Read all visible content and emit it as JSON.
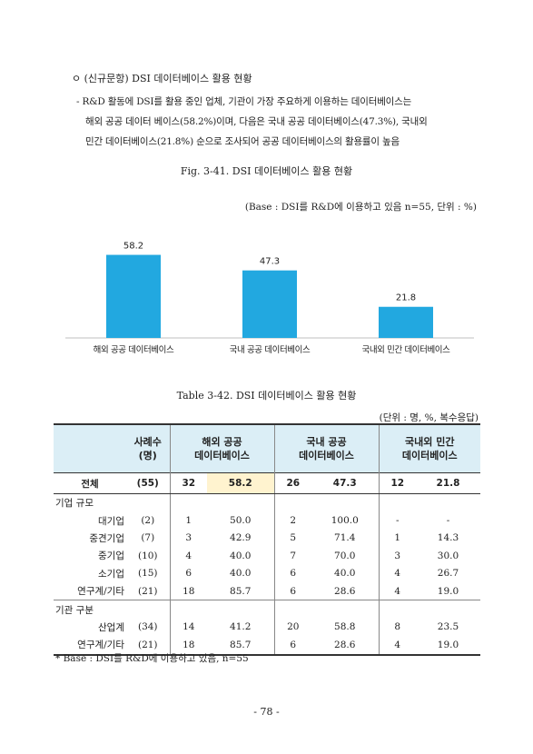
{
  "section": {
    "heading": "ㅇ (신규문항) DSI 데이터베이스 활용 현황",
    "summary_lines": [
      "- R&D 활동에 DSI를 활용 중인 업체, 기관이 가장 주요하게 이용하는 데이터베이스는",
      "해외 공공 데이터 베이스(58.2%)이며, 다음은 국내 공공 데이터베이스(47.3%), 국내외",
      "민간 데이터베이스(21.8%) 순으로 조사되어 공공 데이터베이스의 활용률이 높음"
    ]
  },
  "figure": {
    "caption": "Fig. 3-41. DSI 데이터베이스 활용 현황",
    "base_note": "(Base : DSI를 R&D에 이용하고 있음 n=55, 단위 : %)"
  },
  "chart_data": {
    "type": "bar",
    "categories": [
      "해외 공공 데이터베이스",
      "국내 공공 데이터베이스",
      "국내외 민간 데이터베이스"
    ],
    "values": [
      58.2,
      47.3,
      21.8
    ],
    "value_labels": [
      "58.2",
      "47.3",
      "21.8"
    ],
    "bar_color": "#22a8e0",
    "ylim": [
      0,
      70
    ],
    "grid": false,
    "legend": "none",
    "title": "",
    "xlabel": "",
    "ylabel": ""
  },
  "table": {
    "caption": "Table 3-42. DSI 데이터베이스 활용 현황",
    "unit": "(단위 : 명, %, 복수응답)",
    "headers": {
      "count": [
        "사례수",
        "(명)"
      ],
      "col1": [
        "해외 공공",
        "데이터베이스"
      ],
      "col2": [
        "국내 공공",
        "데이터베이스"
      ],
      "col3": [
        "국내외 민간",
        "데이터베이스"
      ]
    },
    "total": [
      "전체",
      "(55)",
      "32",
      "58.2",
      "26",
      "47.3",
      "12",
      "21.8"
    ],
    "groups": [
      {
        "label": "기업 규모",
        "rows": [
          [
            "대기업",
            "(2)",
            "1",
            "50.0",
            "2",
            "100.0",
            "-",
            "-"
          ],
          [
            "중견기업",
            "(7)",
            "3",
            "42.9",
            "5",
            "71.4",
            "1",
            "14.3"
          ],
          [
            "중기업",
            "(10)",
            "4",
            "40.0",
            "7",
            "70.0",
            "3",
            "30.0"
          ],
          [
            "소기업",
            "(15)",
            "6",
            "40.0",
            "6",
            "40.0",
            "4",
            "26.7"
          ],
          [
            "연구계/기타",
            "(21)",
            "18",
            "85.7",
            "6",
            "28.6",
            "4",
            "19.0"
          ]
        ]
      },
      {
        "label": "기관 구분",
        "rows": [
          [
            "산업계",
            "(34)",
            "14",
            "41.2",
            "20",
            "58.8",
            "8",
            "23.5"
          ],
          [
            "연구계/기타",
            "(21)",
            "18",
            "85.7",
            "6",
            "28.6",
            "4",
            "19.0"
          ]
        ]
      }
    ],
    "highlight_color": "#fff3cf",
    "header_color": "#dbeef6"
  },
  "footnote": "* Base : DSI를 R&D에 이용하고 있음, n=55",
  "page_number": "- 78 -"
}
